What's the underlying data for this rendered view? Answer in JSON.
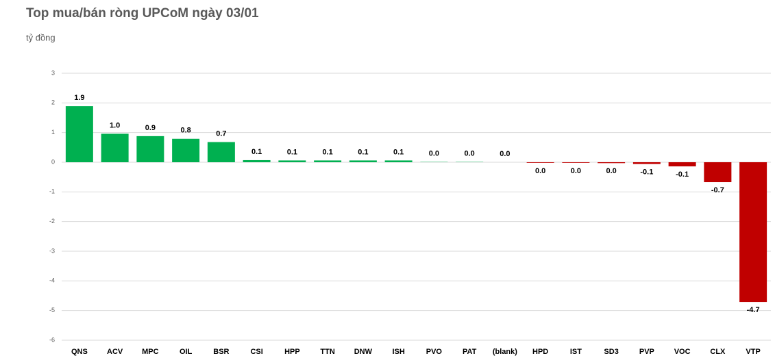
{
  "chart_data": {
    "type": "bar",
    "title": "Top mua/bán ròng UPCoM ngày 03/01",
    "subtitle": "tỷ đồng",
    "categories": [
      "QNS",
      "ACV",
      "MPC",
      "OIL",
      "BSR",
      "CSI",
      "HPP",
      "TTN",
      "DNW",
      "ISH",
      "PVO",
      "PAT",
      "(blank)",
      "HPD",
      "IST",
      "SD3",
      "PVP",
      "VOC",
      "CLX",
      "VTP"
    ],
    "values": [
      1.89,
      0.96,
      0.88,
      0.79,
      0.68,
      0.07,
      0.06,
      0.06,
      0.06,
      0.06,
      0.01,
      0.01,
      0,
      -0.02,
      -0.02,
      -0.03,
      -0.06,
      -0.14,
      -0.67,
      -4.71
    ],
    "value_labels": [
      "1.9",
      "1.0",
      "0.9",
      "0.8",
      "0.7",
      "0.1",
      "0.1",
      "0.1",
      "0.1",
      "0.1",
      "0.0",
      "0.0",
      "0.0",
      "0.0",
      "0.0",
      "0.0",
      "-0.1",
      "-0.1",
      "-0.7",
      "-4.7"
    ],
    "color": "#00b050",
    "negative_color": "#c00000",
    "ylim": [
      -6,
      3
    ],
    "yticks": [
      -6,
      -5,
      -4,
      -3,
      -2,
      -1,
      0,
      1,
      2,
      3
    ],
    "grid": true
  }
}
